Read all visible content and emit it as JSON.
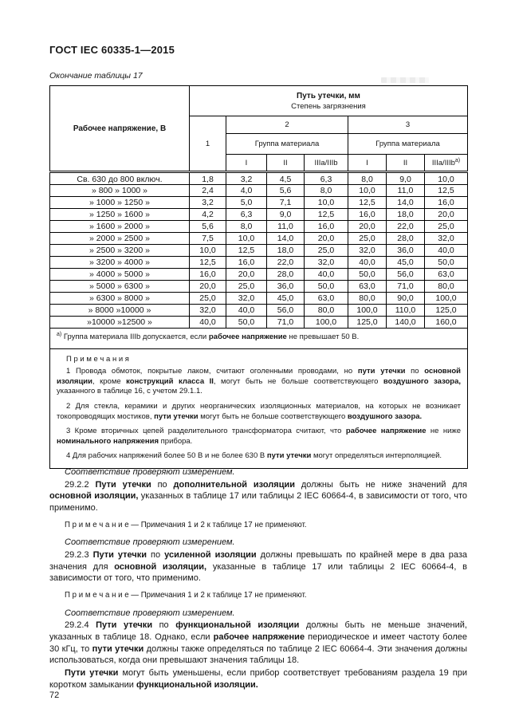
{
  "doc": {
    "header": "ГОСТ IEC 60335-1—2015",
    "caption": "Окончание таблицы 17",
    "page_number": "72"
  },
  "table": {
    "voltage_header": "Рабочее напряжение, В",
    "leakage_title": "Путь утечки, мм",
    "pollution_subtitle": "Степень загрязнения",
    "degree_1": "1",
    "degree_2": "2",
    "degree_3": "3",
    "material_group": "Группа материала",
    "subcols": [
      "I",
      "II",
      "IIIa/IIIb"
    ],
    "footnote_mark": "а)",
    "rows": [
      {
        "voltage": "Св. 630 до 800 включ.",
        "values": [
          "1,8",
          "3,2",
          "4,5",
          "6,3",
          "8,0",
          "9,0",
          "10,0"
        ]
      },
      {
        "voltage": "» 800 » 1000 »",
        "values": [
          "2,4",
          "4,0",
          "5,6",
          "8,0",
          "10,0",
          "11,0",
          "12,5"
        ]
      },
      {
        "voltage": "» 1000 » 1250 »",
        "values": [
          "3,2",
          "5,0",
          "7,1",
          "10,0",
          "12,5",
          "14,0",
          "16,0"
        ]
      },
      {
        "voltage": "» 1250 » 1600 »",
        "values": [
          "4,2",
          "6,3",
          "9,0",
          "12,5",
          "16,0",
          "18,0",
          "20,0"
        ]
      },
      {
        "voltage": "» 1600 » 2000 »",
        "values": [
          "5,6",
          "8,0",
          "11,0",
          "16,0",
          "20,0",
          "22,0",
          "25,0"
        ]
      },
      {
        "voltage": "» 2000 » 2500 »",
        "values": [
          "7,5",
          "10,0",
          "14,0",
          "20,0",
          "25,0",
          "28,0",
          "32,0"
        ]
      },
      {
        "voltage": "» 2500 » 3200 »",
        "values": [
          "10,0",
          "12,5",
          "18,0",
          "25,0",
          "32,0",
          "36,0",
          "40,0"
        ]
      },
      {
        "voltage": "» 3200 » 4000 »",
        "values": [
          "12,5",
          "16,0",
          "22,0",
          "32,0",
          "40,0",
          "45,0",
          "50,0"
        ]
      },
      {
        "voltage": "» 4000 » 5000 »",
        "values": [
          "16,0",
          "20,0",
          "28,0",
          "40,0",
          "50,0",
          "56,0",
          "63,0"
        ]
      },
      {
        "voltage": "» 5000 » 6300 »",
        "values": [
          "20,0",
          "25,0",
          "36,0",
          "50,0",
          "63,0",
          "71,0",
          "80,0"
        ]
      },
      {
        "voltage": "» 6300 » 8000 »",
        "values": [
          "25,0",
          "32,0",
          "45,0",
          "63,0",
          "80,0",
          "90,0",
          "100,0"
        ]
      },
      {
        "voltage": "» 8000 »10000 »",
        "values": [
          "32,0",
          "40,0",
          "56,0",
          "80,0",
          "100,0",
          "110,0",
          "125,0"
        ]
      },
      {
        "voltage": "»10000 »12500 »",
        "values": [
          "40,0",
          "50,0",
          "71,0",
          "100,0",
          "125,0",
          "140,0",
          "160,0"
        ]
      }
    ],
    "footnote": {
      "segments": [
        {
          "t": "а)",
          "sup": true
        },
        {
          "t": " Группа материала IIIb допускается, если "
        },
        {
          "t": "рабочее напряжение",
          "b": true
        },
        {
          "t": " не превышает 50 В."
        }
      ]
    },
    "notes_title": "П р и м е ч а н и я",
    "notes": [
      {
        "segments": [
          {
            "t": "1 Провода обмоток, покрытые лаком, считают оголенными проводами, но "
          },
          {
            "t": "пути утечки",
            "b": true
          },
          {
            "t": " по "
          },
          {
            "t": "основной изоляции",
            "b": true
          },
          {
            "t": ", кроме "
          },
          {
            "t": "конструкций класса II",
            "b": true
          },
          {
            "t": ", могут быть не больше соответствующего "
          },
          {
            "t": "воздушного зазора,",
            "b": true
          },
          {
            "t": " указанного в таблице 16, с учетом 29.1.1."
          }
        ]
      },
      {
        "segments": [
          {
            "t": "2 Для стекла, керамики и других неорганических изоляционных материалов, на которых не возникает токопроводящих мостиков, "
          },
          {
            "t": "пути утечки",
            "b": true
          },
          {
            "t": " могут быть не больше соответствующего "
          },
          {
            "t": "воздушного зазора.",
            "b": true
          }
        ]
      },
      {
        "segments": [
          {
            "t": "3 Кроме вторичных цепей разделительного трансформатора считают, что "
          },
          {
            "t": "рабочее напряжение",
            "b": true
          },
          {
            "t": " не ниже "
          },
          {
            "t": "номинального напряжения",
            "b": true
          },
          {
            "t": " прибора."
          }
        ]
      },
      {
        "segments": [
          {
            "t": "4 Для рабочих напряжений более 50 В и не более 630 В "
          },
          {
            "t": "пути утечки",
            "b": true
          },
          {
            "t": " могут определяться интерполяцией."
          }
        ]
      }
    ]
  },
  "body": {
    "paragraphs": [
      {
        "style": "verify",
        "segments": [
          {
            "t": "Соответствие проверяют измерением."
          }
        ]
      },
      {
        "style": "normal",
        "segments": [
          {
            "t": "29.2.2 "
          },
          {
            "t": "Пути утечки",
            "b": true
          },
          {
            "t": " по "
          },
          {
            "t": "дополнительной изоляции",
            "b": true
          },
          {
            "t": " должны быть не ниже значений для "
          },
          {
            "t": "основной изоляции,",
            "b": true
          },
          {
            "t": " указанных в таблице 17 или таблицы 2 IEC  60664-4, в зависимости от того, что применимо."
          }
        ]
      },
      {
        "style": "note",
        "segments": [
          {
            "t": "П р и м е ч а н и е   —   Примечания 1 и 2 к таблице 17 не применяют."
          }
        ]
      },
      {
        "style": "verify",
        "segments": [
          {
            "t": "Соответствие проверяют измерением."
          }
        ]
      },
      {
        "style": "normal",
        "segments": [
          {
            "t": "29.2.3 "
          },
          {
            "t": "Пути утечки",
            "b": true
          },
          {
            "t": " по "
          },
          {
            "t": "усиленной изоляции",
            "b": true
          },
          {
            "t": " должны превышать по крайней мере в два раза значения для "
          },
          {
            "t": "основной изоляции,",
            "b": true
          },
          {
            "t": " указанные в таблице 17 или таблицы 2 IEC  60664-4, в зависимости от того, что применимо."
          }
        ]
      },
      {
        "style": "note",
        "segments": [
          {
            "t": "П р и м е ч а н и е   —   Примечания 1 и 2 к таблице 17 не применяют."
          }
        ]
      },
      {
        "style": "verify",
        "segments": [
          {
            "t": "Соответствие проверяют измерением."
          }
        ]
      },
      {
        "style": "normal",
        "segments": [
          {
            "t": "29.2.4 "
          },
          {
            "t": "Пути утечки",
            "b": true
          },
          {
            "t": " по "
          },
          {
            "t": "функциональной изоляции",
            "b": true
          },
          {
            "t": " должны быть не меньше значений, указанных в таблице 18. Однако, если "
          },
          {
            "t": "рабочее напряжение",
            "b": true
          },
          {
            "t": " периодическое и имеет частоту более 30 кГц, то "
          },
          {
            "t": "пути утечки",
            "b": true
          },
          {
            "t": " должны также определяться по таблице 2 IEC  60664-4. Эти значения должны использоваться, когда они превышают значения таблицы 18."
          }
        ]
      },
      {
        "style": "normal",
        "segments": [
          {
            "t": "Пути утечки",
            "b": true
          },
          {
            "t": " могут быть уменьшены, если прибор соответствует требованиям раздела 19 при коротком замыкании "
          },
          {
            "t": "функциональной изоляции.",
            "b": true
          }
        ]
      }
    ]
  }
}
